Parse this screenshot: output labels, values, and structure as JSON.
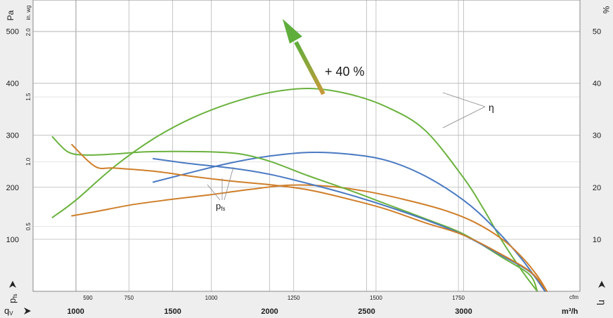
{
  "chart_data": {
    "type": "line",
    "y_left_label": "Pa",
    "y_inwg_label": "in. wg",
    "y_right_label": "%",
    "x_cfm_unit": "cfm",
    "x_m3h_unit": "m³/h",
    "x_m3h_axis_prefix": "q",
    "x_m3h_axis_sub": "V",
    "y_pfs_axis_prefix": "p",
    "y_pfs_axis_sub": "fs",
    "y_eta_axis_label": "η",
    "x_m3h_range": [
      780,
      3600
    ],
    "y_pa_range": [
      0,
      560
    ],
    "y_pct_range": [
      0,
      56
    ],
    "pa_ticks": [
      "100",
      "200",
      "300",
      "400",
      "500"
    ],
    "pa_tick_values": [
      100,
      200,
      300,
      400,
      500
    ],
    "inwg_ticks": [
      "0.5",
      "1.0",
      "1.5",
      "2.0"
    ],
    "inwg_tick_values": [
      0.5,
      1.0,
      1.5,
      2.0
    ],
    "pct_ticks": [
      "10",
      "20",
      "30",
      "40",
      "50"
    ],
    "pct_tick_values": [
      10,
      20,
      30,
      40,
      50
    ],
    "cfm_ticks": [
      "590",
      "750",
      "1000",
      "1250",
      "1500",
      "1750"
    ],
    "cfm_tick_values": [
      590,
      750,
      1000,
      1250,
      1500,
      1750
    ],
    "m3h_ticks": [
      "1000",
      "1500",
      "2000",
      "2500",
      "3000"
    ],
    "m3h_tick_values": [
      1000,
      1500,
      2000,
      2500,
      3000
    ],
    "annotations": {
      "improvement": "+ 40 %",
      "eta": "η",
      "pfs_prefix": "p",
      "pfs_sub": "fs"
    },
    "colors": {
      "green": "#6ab23d",
      "blue": "#4a7ac2",
      "orange": "#cf7f2a",
      "arrow_start": "#c89a3a",
      "arrow_end": "#5fae3c"
    },
    "series": [
      {
        "color": "green",
        "points": [
          [
            880,
            142
          ],
          [
            1000,
            175
          ],
          [
            1200,
            240
          ],
          [
            1400,
            293
          ],
          [
            1600,
            333
          ],
          [
            1800,
            362
          ],
          [
            2000,
            382
          ],
          [
            2200,
            390
          ],
          [
            2400,
            380
          ],
          [
            2600,
            355
          ],
          [
            2800,
            310
          ],
          [
            3000,
            218
          ],
          [
            3100,
            160
          ],
          [
            3200,
            96
          ],
          [
            3300,
            40
          ],
          [
            3380,
            0
          ]
        ]
      },
      {
        "color": "blue",
        "points": [
          [
            1400,
            210
          ],
          [
            1600,
            229
          ],
          [
            1800,
            247
          ],
          [
            2000,
            260
          ],
          [
            2200,
            267
          ],
          [
            2400,
            264
          ],
          [
            2600,
            252
          ],
          [
            2800,
            222
          ],
          [
            3000,
            175
          ],
          [
            3150,
            125
          ],
          [
            3300,
            62
          ],
          [
            3420,
            0
          ]
        ]
      },
      {
        "color": "orange",
        "points": [
          [
            980,
            145
          ],
          [
            1100,
            153
          ],
          [
            1300,
            167
          ],
          [
            1500,
            177
          ],
          [
            1700,
            186
          ],
          [
            1900,
            196
          ],
          [
            2100,
            204
          ],
          [
            2300,
            202
          ],
          [
            2500,
            192
          ],
          [
            2700,
            176
          ],
          [
            2900,
            156
          ],
          [
            3050,
            134
          ],
          [
            3200,
            100
          ],
          [
            3300,
            66
          ],
          [
            3380,
            30
          ],
          [
            3430,
            0
          ]
        ]
      },
      {
        "color": "green",
        "points": [
          [
            880,
            297
          ],
          [
            960,
            268
          ],
          [
            1050,
            262
          ],
          [
            1200,
            264
          ],
          [
            1350,
            268
          ],
          [
            1500,
            269
          ],
          [
            1700,
            268
          ],
          [
            1850,
            264
          ],
          [
            2000,
            250
          ],
          [
            2200,
            222
          ],
          [
            2400,
            196
          ],
          [
            2600,
            168
          ],
          [
            2800,
            140
          ],
          [
            3000,
            110
          ],
          [
            3200,
            65
          ],
          [
            3340,
            32
          ],
          [
            3380,
            0
          ]
        ]
      },
      {
        "color": "blue",
        "points": [
          [
            1400,
            255
          ],
          [
            1600,
            245
          ],
          [
            1800,
            237
          ],
          [
            2000,
            225
          ],
          [
            2200,
            207
          ],
          [
            2400,
            187
          ],
          [
            2600,
            164
          ],
          [
            2800,
            138
          ],
          [
            3000,
            108
          ],
          [
            3200,
            68
          ],
          [
            3350,
            35
          ],
          [
            3420,
            0
          ]
        ]
      },
      {
        "color": "orange",
        "points": [
          [
            980,
            282
          ],
          [
            1100,
            240
          ],
          [
            1200,
            237
          ],
          [
            1400,
            231
          ],
          [
            1600,
            221
          ],
          [
            1800,
            212
          ],
          [
            2000,
            205
          ],
          [
            2200,
            195
          ],
          [
            2400,
            178
          ],
          [
            2600,
            158
          ],
          [
            2800,
            132
          ],
          [
            3000,
            108
          ],
          [
            3200,
            70
          ],
          [
            3350,
            36
          ],
          [
            3430,
            0
          ]
        ]
      }
    ]
  }
}
